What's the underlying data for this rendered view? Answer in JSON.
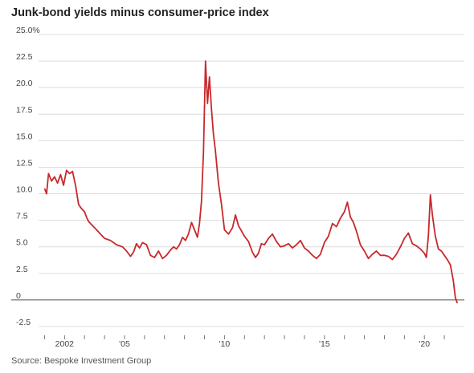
{
  "title": "Junk-bond yields minus consumer-price index",
  "source": "Source: Bespoke Investment Group",
  "chart_data": {
    "type": "line",
    "title": "Junk-bond yields minus consumer-price index",
    "xlabel": "",
    "ylabel": "",
    "y_tick_labels": [
      "25.0%",
      "22.5",
      "20.0",
      "17.5",
      "15.0",
      "12.5",
      "10.0",
      "7.5",
      "5.0",
      "2.5",
      "0",
      "-2.5"
    ],
    "y_tick_values": [
      25,
      22.5,
      20,
      17.5,
      15,
      12.5,
      10,
      7.5,
      5,
      2.5,
      0,
      -2.5
    ],
    "x_tick_labels": [
      "2002",
      "'05",
      "'10",
      "'15",
      "'20"
    ],
    "x_tick_values": [
      2002,
      2005,
      2010,
      2015,
      2020
    ],
    "xlim": [
      2000.7,
      2022.0
    ],
    "ylim": [
      -2.5,
      25
    ],
    "grid": true,
    "zero_line": true,
    "line_color": "#c8282b",
    "series": [
      {
        "x": [
          2001.0,
          2001.1,
          2001.2,
          2001.35,
          2001.5,
          2001.65,
          2001.8,
          2001.95,
          2002.1,
          2002.25,
          2002.4,
          2002.55,
          2002.7,
          2002.85,
          2003.0,
          2003.1,
          2003.2,
          2003.3,
          2003.45,
          2003.6,
          2003.8,
          2004.0,
          2004.3,
          2004.6,
          2004.9,
          2005.1,
          2005.3,
          2005.45,
          2005.6,
          2005.75,
          2005.9,
          2006.1,
          2006.3,
          2006.5,
          2006.7,
          2006.9,
          2007.1,
          2007.3,
          2007.45,
          2007.6,
          2007.75,
          2007.9,
          2008.05,
          2008.2,
          2008.35,
          2008.5,
          2008.65,
          2008.75,
          2008.85,
          2008.95,
          2009.05,
          2009.15,
          2009.25,
          2009.35,
          2009.45,
          2009.55,
          2009.7,
          2009.85,
          2010.0,
          2010.2,
          2010.4,
          2010.55,
          2010.7,
          2010.85,
          2011.0,
          2011.2,
          2011.4,
          2011.55,
          2011.7,
          2011.85,
          2012.0,
          2012.2,
          2012.4,
          2012.6,
          2012.8,
          2013.0,
          2013.2,
          2013.4,
          2013.6,
          2013.8,
          2014.0,
          2014.2,
          2014.4,
          2014.6,
          2014.8,
          2015.0,
          2015.2,
          2015.4,
          2015.6,
          2015.8,
          2016.0,
          2016.15,
          2016.3,
          2016.45,
          2016.6,
          2016.8,
          2017.0,
          2017.2,
          2017.4,
          2017.6,
          2017.8,
          2018.0,
          2018.2,
          2018.4,
          2018.6,
          2018.8,
          2019.0,
          2019.2,
          2019.4,
          2019.6,
          2019.8,
          2020.0,
          2020.1,
          2020.2,
          2020.3,
          2020.4,
          2020.55,
          2020.7,
          2020.85,
          2021.0,
          2021.15,
          2021.3,
          2021.45,
          2021.55,
          2021.65
        ],
        "y": [
          10.5,
          10.0,
          11.9,
          11.2,
          11.6,
          11.0,
          11.8,
          10.8,
          12.2,
          11.9,
          12.1,
          10.8,
          9.0,
          8.6,
          8.3,
          7.8,
          7.4,
          7.2,
          6.9,
          6.6,
          6.2,
          5.8,
          5.6,
          5.2,
          5.0,
          4.6,
          4.1,
          4.5,
          5.3,
          4.9,
          5.4,
          5.2,
          4.2,
          4.0,
          4.6,
          3.9,
          4.2,
          4.7,
          5.0,
          4.8,
          5.2,
          5.9,
          5.6,
          6.2,
          7.3,
          6.6,
          5.9,
          7.2,
          9.3,
          14.0,
          22.5,
          18.5,
          21.0,
          18.0,
          15.6,
          14.0,
          11.0,
          9.0,
          6.6,
          6.2,
          6.8,
          8.0,
          7.0,
          6.5,
          6.0,
          5.5,
          4.5,
          4.0,
          4.4,
          5.3,
          5.2,
          5.8,
          6.2,
          5.5,
          5.0,
          5.1,
          5.3,
          4.9,
          5.2,
          5.6,
          4.9,
          4.6,
          4.2,
          3.9,
          4.3,
          5.4,
          6.0,
          7.2,
          6.9,
          7.7,
          8.3,
          9.2,
          7.8,
          7.3,
          6.5,
          5.2,
          4.6,
          3.9,
          4.3,
          4.6,
          4.2,
          4.2,
          4.1,
          3.8,
          4.3,
          5.0,
          5.8,
          6.3,
          5.3,
          5.1,
          4.8,
          4.4,
          4.0,
          6.0,
          9.9,
          8.0,
          6.0,
          4.8,
          4.6,
          4.2,
          3.8,
          3.3,
          1.8,
          0.2,
          -0.3
        ]
      }
    ]
  }
}
